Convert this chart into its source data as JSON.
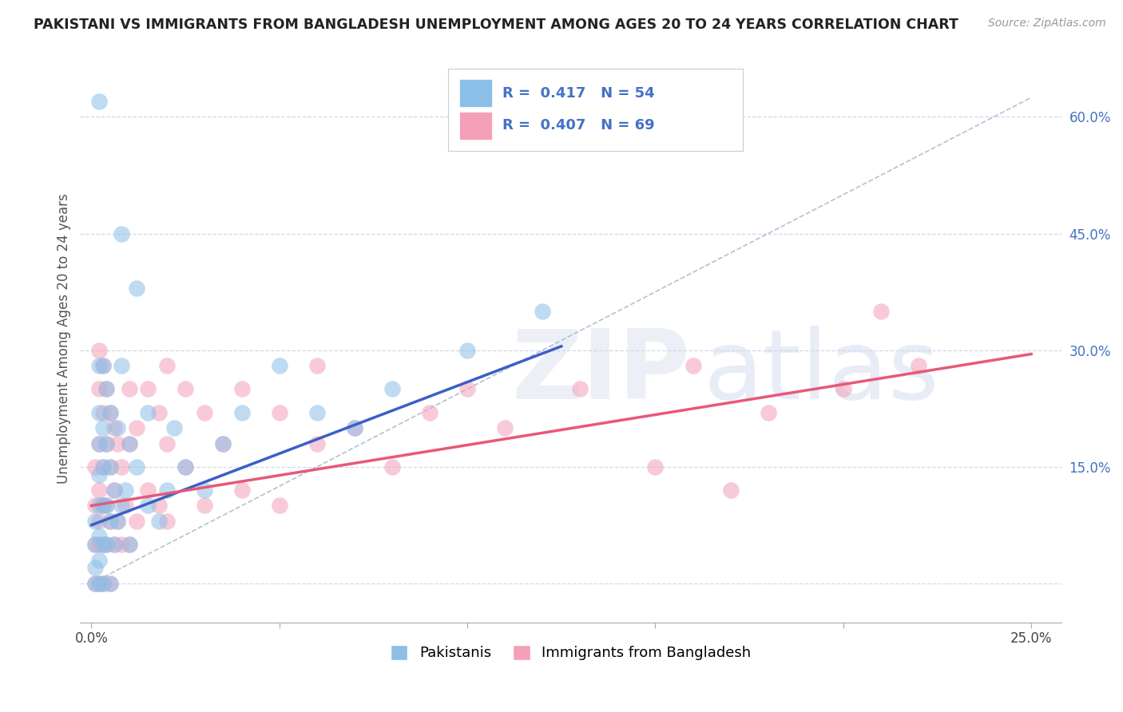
{
  "title": "PAKISTANI VS IMMIGRANTS FROM BANGLADESH UNEMPLOYMENT AMONG AGES 20 TO 24 YEARS CORRELATION CHART",
  "source": "Source: ZipAtlas.com",
  "ylabel": "Unemployment Among Ages 20 to 24 years",
  "x_min": 0.0,
  "x_max": 0.25,
  "y_min": -0.05,
  "y_max": 0.68,
  "pakistani_color": "#8bbfe8",
  "bangladesh_color": "#f4a0b8",
  "trend_pakistani_color": "#3a5fc8",
  "trend_bangladesh_color": "#e85878",
  "ref_line_color": "#b0b8d0",
  "grid_color": "#d0d8e8",
  "pakistani_n": 54,
  "bangladesh_n": 69,
  "pakistani_R": 0.417,
  "bangladesh_R": 0.407,
  "pak_trend_x0": 0.0,
  "pak_trend_y0": 0.075,
  "pak_trend_x1": 0.125,
  "pak_trend_y1": 0.305,
  "ban_trend_x0": 0.0,
  "ban_trend_y0": 0.1,
  "ban_trend_x1": 0.25,
  "ban_trend_y1": 0.295,
  "pakistani_scatter": [
    [
      0.001,
      0.0
    ],
    [
      0.001,
      0.02
    ],
    [
      0.001,
      0.05
    ],
    [
      0.001,
      0.08
    ],
    [
      0.002,
      0.0
    ],
    [
      0.002,
      0.03
    ],
    [
      0.002,
      0.06
    ],
    [
      0.002,
      0.1
    ],
    [
      0.002,
      0.14
    ],
    [
      0.002,
      0.18
    ],
    [
      0.002,
      0.22
    ],
    [
      0.002,
      0.28
    ],
    [
      0.003,
      0.0
    ],
    [
      0.003,
      0.05
    ],
    [
      0.003,
      0.1
    ],
    [
      0.003,
      0.15
    ],
    [
      0.003,
      0.2
    ],
    [
      0.003,
      0.28
    ],
    [
      0.004,
      0.05
    ],
    [
      0.004,
      0.1
    ],
    [
      0.004,
      0.18
    ],
    [
      0.004,
      0.25
    ],
    [
      0.005,
      0.0
    ],
    [
      0.005,
      0.08
    ],
    [
      0.005,
      0.15
    ],
    [
      0.005,
      0.22
    ],
    [
      0.006,
      0.05
    ],
    [
      0.006,
      0.12
    ],
    [
      0.007,
      0.08
    ],
    [
      0.007,
      0.2
    ],
    [
      0.008,
      0.1
    ],
    [
      0.008,
      0.28
    ],
    [
      0.009,
      0.12
    ],
    [
      0.01,
      0.05
    ],
    [
      0.01,
      0.18
    ],
    [
      0.012,
      0.15
    ],
    [
      0.015,
      0.1
    ],
    [
      0.015,
      0.22
    ],
    [
      0.018,
      0.08
    ],
    [
      0.02,
      0.12
    ],
    [
      0.022,
      0.2
    ],
    [
      0.025,
      0.15
    ],
    [
      0.03,
      0.12
    ],
    [
      0.035,
      0.18
    ],
    [
      0.04,
      0.22
    ],
    [
      0.05,
      0.28
    ],
    [
      0.06,
      0.22
    ],
    [
      0.07,
      0.2
    ],
    [
      0.08,
      0.25
    ],
    [
      0.1,
      0.3
    ],
    [
      0.12,
      0.35
    ],
    [
      0.002,
      0.62
    ],
    [
      0.008,
      0.45
    ],
    [
      0.012,
      0.38
    ]
  ],
  "bangladesh_scatter": [
    [
      0.001,
      0.0
    ],
    [
      0.001,
      0.05
    ],
    [
      0.001,
      0.1
    ],
    [
      0.001,
      0.15
    ],
    [
      0.002,
      0.0
    ],
    [
      0.002,
      0.05
    ],
    [
      0.002,
      0.08
    ],
    [
      0.002,
      0.12
    ],
    [
      0.002,
      0.18
    ],
    [
      0.002,
      0.25
    ],
    [
      0.002,
      0.3
    ],
    [
      0.003,
      0.0
    ],
    [
      0.003,
      0.05
    ],
    [
      0.003,
      0.1
    ],
    [
      0.003,
      0.15
    ],
    [
      0.003,
      0.22
    ],
    [
      0.003,
      0.28
    ],
    [
      0.004,
      0.05
    ],
    [
      0.004,
      0.1
    ],
    [
      0.004,
      0.18
    ],
    [
      0.004,
      0.25
    ],
    [
      0.005,
      0.0
    ],
    [
      0.005,
      0.08
    ],
    [
      0.005,
      0.15
    ],
    [
      0.005,
      0.22
    ],
    [
      0.006,
      0.05
    ],
    [
      0.006,
      0.12
    ],
    [
      0.006,
      0.2
    ],
    [
      0.007,
      0.08
    ],
    [
      0.007,
      0.18
    ],
    [
      0.008,
      0.05
    ],
    [
      0.008,
      0.15
    ],
    [
      0.009,
      0.1
    ],
    [
      0.01,
      0.05
    ],
    [
      0.01,
      0.18
    ],
    [
      0.01,
      0.25
    ],
    [
      0.012,
      0.08
    ],
    [
      0.012,
      0.2
    ],
    [
      0.015,
      0.12
    ],
    [
      0.015,
      0.25
    ],
    [
      0.018,
      0.1
    ],
    [
      0.018,
      0.22
    ],
    [
      0.02,
      0.08
    ],
    [
      0.02,
      0.18
    ],
    [
      0.02,
      0.28
    ],
    [
      0.025,
      0.15
    ],
    [
      0.025,
      0.25
    ],
    [
      0.03,
      0.1
    ],
    [
      0.03,
      0.22
    ],
    [
      0.035,
      0.18
    ],
    [
      0.04,
      0.12
    ],
    [
      0.04,
      0.25
    ],
    [
      0.05,
      0.1
    ],
    [
      0.05,
      0.22
    ],
    [
      0.06,
      0.18
    ],
    [
      0.06,
      0.28
    ],
    [
      0.07,
      0.2
    ],
    [
      0.08,
      0.15
    ],
    [
      0.09,
      0.22
    ],
    [
      0.1,
      0.25
    ],
    [
      0.11,
      0.2
    ],
    [
      0.13,
      0.25
    ],
    [
      0.15,
      0.15
    ],
    [
      0.16,
      0.28
    ],
    [
      0.17,
      0.12
    ],
    [
      0.18,
      0.22
    ],
    [
      0.2,
      0.25
    ],
    [
      0.21,
      0.35
    ],
    [
      0.22,
      0.28
    ]
  ]
}
